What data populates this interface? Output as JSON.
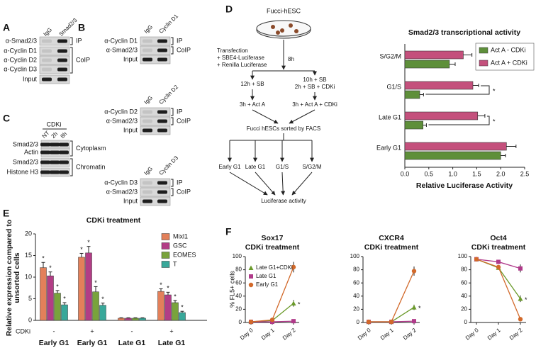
{
  "panel_labels": [
    "A",
    "B",
    "C",
    "D",
    "E",
    "F"
  ],
  "blots": {
    "A": {
      "lanes": [
        "IgG",
        "Smad2/3"
      ],
      "rows": [
        "α-Smad2/3",
        "α-Cyclin D1",
        "α-Cyclin D2",
        "α-Cyclin D3",
        "Input"
      ],
      "brackets": [
        "IP",
        "CoIP"
      ]
    },
    "B": [
      {
        "lanes": [
          "IgG",
          "Cyclin D1"
        ],
        "rows": [
          "α-Cyclin D1",
          "α-Smad2/3",
          "Input"
        ],
        "brackets": [
          "IP",
          "CoIP"
        ]
      },
      {
        "lanes": [
          "IgG",
          "Cyclin D2"
        ],
        "rows": [
          "α-Cyclin D2",
          "α-Smad2/3",
          "Input"
        ],
        "brackets": [
          "IP",
          "CoIP"
        ]
      },
      {
        "lanes": [
          "IgG",
          "Cyclin D3"
        ],
        "rows": [
          "α-Cyclin D3",
          "α-Smad2/3",
          "Input"
        ],
        "brackets": [
          "IP",
          "CoIP"
        ]
      }
    ],
    "C": {
      "treatment": "CDKi",
      "lanes": [
        "NT",
        "2h",
        "8h"
      ],
      "rows": [
        "Smad2/3",
        "Actin",
        "Smad2/3",
        "Histone H3"
      ],
      "brackets": [
        "Cytoplasm",
        "Chromatin"
      ]
    }
  },
  "diagram": {
    "title": "Fucci-hESC",
    "transfection": [
      "Transfection",
      "+ SBE4-Luciferase",
      "+ Renilla Luciferase"
    ],
    "wait": "8h",
    "left_steps": [
      [
        "12h + SB"
      ],
      [
        "3h + Act A"
      ]
    ],
    "right_steps": [
      [
        "10h + SB",
        "2h + SB + CDKi"
      ],
      [
        "3h + Act A + CDKi"
      ]
    ],
    "sort": "Fucci hESCs sorted by FACS",
    "fractions": [
      "Early G1",
      "Late G1",
      "G1/S",
      "S/G2/M"
    ],
    "readout": "Luciferase activity"
  },
  "chart_data": [
    {
      "type": "bar",
      "orientation": "horizontal",
      "title": "Smad2/3 transcriptional activity",
      "xlabel": "Relative Luciferase Activity",
      "categories": [
        "S/G2/M",
        "G1/S",
        "Late G1",
        "Early G1"
      ],
      "series": [
        {
          "name": "Act A - CDKi",
          "color": "#5e8f3a",
          "values": [
            0.93,
            0.31,
            0.38,
            2.0
          ],
          "errors": [
            0.12,
            0.08,
            0.07,
            0.1
          ]
        },
        {
          "name": "Act A + CDKi",
          "color": "#c4507c",
          "values": [
            1.22,
            1.42,
            1.52,
            2.12
          ],
          "errors": [
            0.18,
            0.12,
            0.15,
            0.2
          ]
        }
      ],
      "significance": [
        null,
        "*",
        "*",
        null
      ],
      "xlim": [
        0,
        2.5
      ],
      "xticks": [
        {
          "value": 0,
          "label": "0.0"
        },
        0.5,
        {
          "value": 1,
          "label": "1.0"
        },
        1.5,
        {
          "value": 2,
          "label": "2.0"
        },
        2.5
      ],
      "legend": "upper right"
    },
    {
      "type": "bar",
      "title": "CDKi treatment",
      "ylabel": [
        "Relative expression compared to",
        "unsorted cells"
      ],
      "categories": [
        "Early G1",
        "Early G1",
        "Late G1",
        "Late G1"
      ],
      "treatment_label": "CDKi",
      "treatment": [
        "-",
        "+",
        "-",
        "+"
      ],
      "series": [
        {
          "name": "Mixl1",
          "color": "#e3805a",
          "values": [
            12.2,
            14.6,
            0.5,
            6.7
          ],
          "errors": [
            1.2,
            0.9,
            0.1,
            0.6
          ],
          "significance": [
            "*",
            "*",
            null,
            "*"
          ]
        },
        {
          "name": "GSC",
          "color": "#b23d86",
          "values": [
            10.3,
            15.6,
            0.5,
            5.9
          ],
          "errors": [
            0.9,
            1.5,
            0.1,
            0.6
          ],
          "significance": [
            "*",
            "*",
            null,
            "*"
          ]
        },
        {
          "name": "EOMES",
          "color": "#79a33c",
          "values": [
            6.3,
            6.6,
            0.5,
            4.1
          ],
          "errors": [
            0.6,
            1.2,
            0.1,
            0.5
          ],
          "significance": [
            "*",
            "*",
            null,
            "*"
          ]
        },
        {
          "name": "T",
          "color": "#38a89a",
          "values": [
            3.6,
            3.5,
            0.5,
            1.8
          ],
          "errors": [
            0.5,
            0.5,
            0.1,
            0.3
          ],
          "significance": [
            "*",
            "*",
            null,
            "*"
          ]
        }
      ],
      "ylim": [
        0,
        20
      ],
      "yticks": [
        0,
        5,
        10,
        15,
        20
      ],
      "legend": "upper right"
    },
    {
      "type": "line",
      "title": "Sox17",
      "subtitle": "CDKi treatment",
      "ylabel": "% FL5+ cells",
      "categories": [
        "Day 0",
        "Day 1",
        "Day 2"
      ],
      "series": [
        {
          "name": "Late G1+CDKi",
          "color": "#6a9a2a",
          "marker": "triangle",
          "values": [
            1,
            3,
            29
          ],
          "errors": [
            0.5,
            1,
            5
          ],
          "significance": [
            null,
            null,
            "*"
          ]
        },
        {
          "name": "Late G1",
          "color": "#b03a8a",
          "marker": "square",
          "values": [
            1,
            1,
            2
          ],
          "errors": [
            0.3,
            0.3,
            0.5
          ]
        },
        {
          "name": "Early G1",
          "color": "#d2692a",
          "marker": "circle",
          "values": [
            1,
            4,
            84
          ],
          "errors": [
            0.3,
            1,
            8
          ]
        }
      ],
      "ylim": [
        0,
        100
      ],
      "yticks": [
        0,
        20,
        40,
        60,
        80,
        100
      ],
      "legend": "upper left"
    },
    {
      "type": "line",
      "title": "CXCR4",
      "subtitle": "CDKi treatment",
      "categories": [
        "Day 0",
        "Day 1",
        "Day 2"
      ],
      "series": [
        {
          "color": "#6a9a2a",
          "marker": "triangle",
          "values": [
            1,
            1,
            23
          ],
          "errors": [
            0.3,
            0.3,
            4
          ],
          "significance": [
            null,
            null,
            "*"
          ]
        },
        {
          "color": "#b03a8a",
          "marker": "square",
          "values": [
            1,
            1,
            2
          ],
          "errors": [
            0.3,
            0.3,
            0.5
          ]
        },
        {
          "color": "#d2692a",
          "marker": "circle",
          "values": [
            1,
            1,
            78
          ],
          "errors": [
            0.3,
            0.3,
            7
          ]
        }
      ],
      "ylim": [
        0,
        100
      ],
      "yticks": [
        0,
        20,
        40,
        60,
        80,
        100
      ]
    },
    {
      "type": "line",
      "title": "Oct4",
      "subtitle": "CDKi treatment",
      "categories": [
        "Day 0",
        "Day 1",
        "Day 2"
      ],
      "series": [
        {
          "color": "#6a9a2a",
          "marker": "triangle",
          "values": [
            96,
            83,
            36
          ],
          "errors": [
            1,
            3,
            5
          ],
          "significance": [
            null,
            null,
            "*"
          ]
        },
        {
          "color": "#b03a8a",
          "marker": "square",
          "values": [
            96,
            92,
            82
          ],
          "errors": [
            1,
            3,
            6
          ]
        },
        {
          "color": "#d2692a",
          "marker": "circle",
          "values": [
            96,
            84,
            5
          ],
          "errors": [
            1,
            3,
            3
          ]
        }
      ],
      "ylim": [
        0,
        100
      ],
      "yticks": [
        0,
        20,
        40,
        60,
        80,
        100
      ]
    }
  ]
}
